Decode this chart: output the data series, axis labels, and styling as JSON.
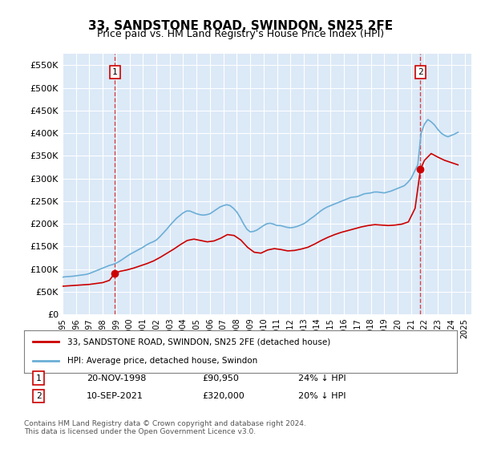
{
  "title": "33, SANDSTONE ROAD, SWINDON, SN25 2FE",
  "subtitle": "Price paid vs. HM Land Registry's House Price Index (HPI)",
  "background_color": "#ffffff",
  "plot_bg_color": "#dce9f7",
  "grid_color": "#ffffff",
  "ylim": [
    0,
    575000
  ],
  "yticks": [
    0,
    50000,
    100000,
    150000,
    200000,
    250000,
    300000,
    350000,
    400000,
    450000,
    500000,
    550000
  ],
  "ytick_labels": [
    "£0",
    "£50K",
    "£100K",
    "£150K",
    "£200K",
    "£250K",
    "£300K",
    "£350K",
    "£400K",
    "£450K",
    "£500K",
    "£550K"
  ],
  "xlim_start": 1995.0,
  "xlim_end": 2025.5,
  "xticks": [
    1995,
    1996,
    1997,
    1998,
    1999,
    2000,
    2001,
    2002,
    2003,
    2004,
    2005,
    2006,
    2007,
    2008,
    2009,
    2010,
    2011,
    2012,
    2013,
    2014,
    2015,
    2016,
    2017,
    2018,
    2019,
    2020,
    2021,
    2022,
    2023,
    2024,
    2025
  ],
  "hpi_color": "#6baed6",
  "price_color": "#cc0000",
  "transaction1_x": 1998.9,
  "transaction1_y": 90950,
  "transaction1_label": "1",
  "transaction1_date": "20-NOV-1998",
  "transaction1_price": "£90,950",
  "transaction1_hpi": "24% ↓ HPI",
  "transaction2_x": 2021.7,
  "transaction2_y": 320000,
  "transaction2_label": "2",
  "transaction2_date": "10-SEP-2021",
  "transaction2_price": "£320,000",
  "transaction2_hpi": "20% ↓ HPI",
  "legend_line1": "33, SANDSTONE ROAD, SWINDON, SN25 2FE (detached house)",
  "legend_line2": "HPI: Average price, detached house, Swindon",
  "footer": "Contains HM Land Registry data © Crown copyright and database right 2024.\nThis data is licensed under the Open Government Licence v3.0.",
  "hpi_data": {
    "years": [
      1995.0,
      1995.25,
      1995.5,
      1995.75,
      1996.0,
      1996.25,
      1996.5,
      1996.75,
      1997.0,
      1997.25,
      1997.5,
      1997.75,
      1998.0,
      1998.25,
      1998.5,
      1998.75,
      1999.0,
      1999.25,
      1999.5,
      1999.75,
      2000.0,
      2000.25,
      2000.5,
      2000.75,
      2001.0,
      2001.25,
      2001.5,
      2001.75,
      2002.0,
      2002.25,
      2002.5,
      2002.75,
      2003.0,
      2003.25,
      2003.5,
      2003.75,
      2004.0,
      2004.25,
      2004.5,
      2004.75,
      2005.0,
      2005.25,
      2005.5,
      2005.75,
      2006.0,
      2006.25,
      2006.5,
      2006.75,
      2007.0,
      2007.25,
      2007.5,
      2007.75,
      2008.0,
      2008.25,
      2008.5,
      2008.75,
      2009.0,
      2009.25,
      2009.5,
      2009.75,
      2010.0,
      2010.25,
      2010.5,
      2010.75,
      2011.0,
      2011.25,
      2011.5,
      2011.75,
      2012.0,
      2012.25,
      2012.5,
      2012.75,
      2013.0,
      2013.25,
      2013.5,
      2013.75,
      2014.0,
      2014.25,
      2014.5,
      2014.75,
      2015.0,
      2015.25,
      2015.5,
      2015.75,
      2016.0,
      2016.25,
      2016.5,
      2016.75,
      2017.0,
      2017.25,
      2017.5,
      2017.75,
      2018.0,
      2018.25,
      2018.5,
      2018.75,
      2019.0,
      2019.25,
      2019.5,
      2019.75,
      2020.0,
      2020.25,
      2020.5,
      2020.75,
      2021.0,
      2021.25,
      2021.5,
      2021.75,
      2022.0,
      2022.25,
      2022.5,
      2022.75,
      2023.0,
      2023.25,
      2023.5,
      2023.75,
      2024.0,
      2024.25,
      2024.5
    ],
    "values": [
      82000,
      83000,
      83500,
      84000,
      85000,
      86000,
      87000,
      88000,
      90000,
      93000,
      96000,
      99000,
      102000,
      105000,
      108000,
      110000,
      113000,
      117000,
      122000,
      127000,
      132000,
      136000,
      140000,
      144000,
      148000,
      153000,
      157000,
      160000,
      164000,
      171000,
      179000,
      187000,
      196000,
      204000,
      212000,
      218000,
      224000,
      228000,
      228000,
      225000,
      222000,
      220000,
      219000,
      220000,
      222000,
      227000,
      232000,
      237000,
      240000,
      242000,
      240000,
      234000,
      226000,
      214000,
      200000,
      188000,
      182000,
      183000,
      186000,
      191000,
      196000,
      200000,
      201000,
      199000,
      196000,
      196000,
      194000,
      192000,
      191000,
      192000,
      194000,
      197000,
      200000,
      205000,
      211000,
      216000,
      222000,
      228000,
      233000,
      237000,
      240000,
      243000,
      246000,
      249000,
      252000,
      255000,
      258000,
      259000,
      260000,
      263000,
      266000,
      267000,
      268000,
      270000,
      270000,
      269000,
      268000,
      270000,
      272000,
      275000,
      278000,
      281000,
      284000,
      291000,
      300000,
      315000,
      330000,
      400000,
      420000,
      430000,
      425000,
      418000,
      408000,
      400000,
      395000,
      392000,
      395000,
      398000,
      402000
    ]
  },
  "price_data": {
    "years": [
      1995.0,
      1995.5,
      1996.0,
      1996.5,
      1997.0,
      1997.5,
      1998.0,
      1998.5,
      1998.9,
      1999.3,
      1999.8,
      2000.3,
      2000.8,
      2001.3,
      2001.8,
      2002.3,
      2002.8,
      2003.3,
      2003.8,
      2004.3,
      2004.8,
      2005.3,
      2005.8,
      2006.3,
      2006.8,
      2007.3,
      2007.8,
      2008.3,
      2008.8,
      2009.3,
      2009.8,
      2010.3,
      2010.8,
      2011.3,
      2011.8,
      2012.3,
      2012.8,
      2013.3,
      2013.8,
      2014.3,
      2014.8,
      2015.3,
      2015.8,
      2016.3,
      2016.8,
      2017.3,
      2017.8,
      2018.3,
      2018.8,
      2019.3,
      2019.8,
      2020.3,
      2020.8,
      2021.3,
      2021.7,
      2022.0,
      2022.5,
      2023.0,
      2023.5,
      2024.0,
      2024.5
    ],
    "values": [
      62000,
      63000,
      64000,
      65000,
      66000,
      68000,
      70000,
      75000,
      90950,
      95000,
      98000,
      102000,
      107000,
      112000,
      118000,
      126000,
      135000,
      144000,
      154000,
      163000,
      166000,
      163000,
      160000,
      162000,
      168000,
      176000,
      174000,
      164000,
      148000,
      137000,
      135000,
      142000,
      145000,
      143000,
      140000,
      141000,
      144000,
      148000,
      155000,
      163000,
      170000,
      176000,
      181000,
      185000,
      189000,
      193000,
      196000,
      198000,
      197000,
      196000,
      197000,
      199000,
      204000,
      234000,
      320000,
      340000,
      355000,
      347000,
      340000,
      335000,
      330000
    ]
  }
}
